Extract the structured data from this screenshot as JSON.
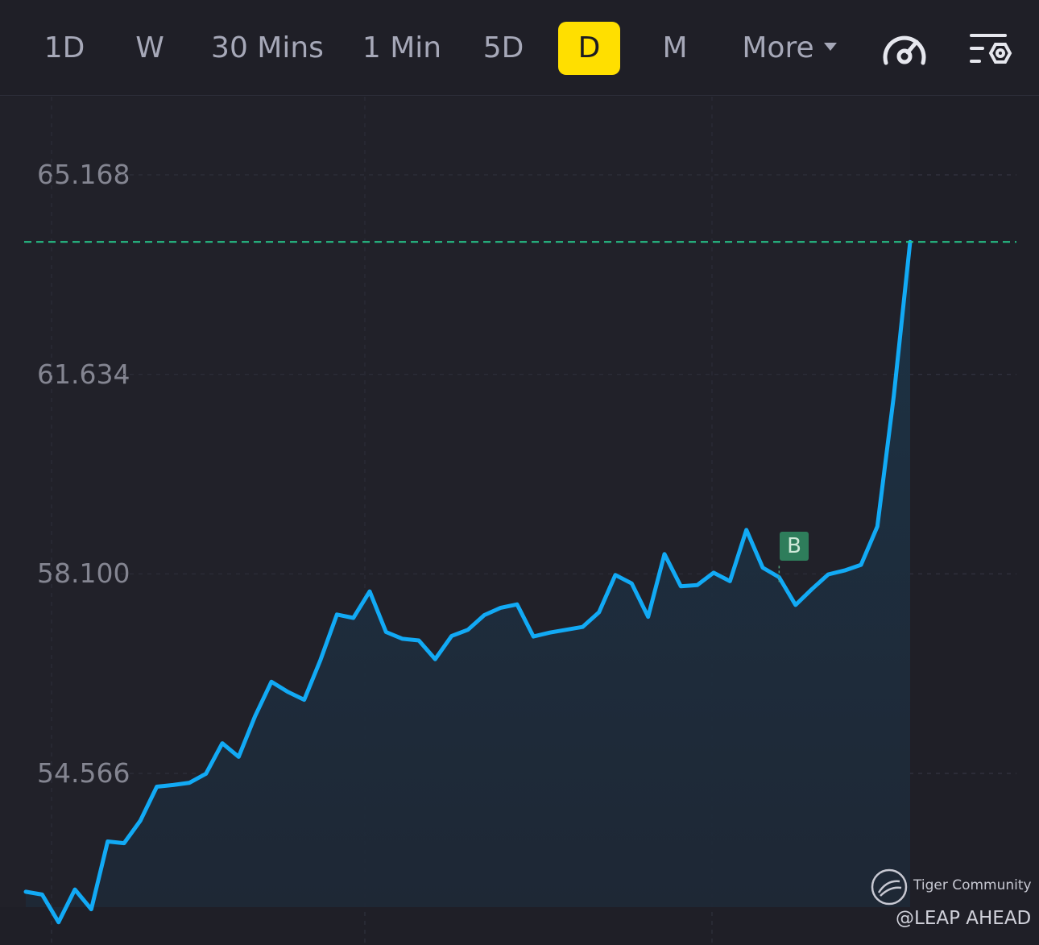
{
  "toolbar": {
    "tabs": [
      {
        "label": "1D",
        "active": false
      },
      {
        "label": "W",
        "active": false
      },
      {
        "label": "30 Mins",
        "active": false
      },
      {
        "label": "1 Min",
        "active": false
      },
      {
        "label": "5D",
        "active": false
      },
      {
        "label": "D",
        "active": true
      },
      {
        "label": "M",
        "active": false
      },
      {
        "label": "More",
        "active": false
      }
    ],
    "icons": [
      "speedometer-icon",
      "chart-settings-icon"
    ]
  },
  "chart_data": {
    "type": "area",
    "title": "",
    "xlabel": "",
    "ylabel": "",
    "y_ticks": [
      "65.168",
      "61.634",
      "58.100",
      "54.566"
    ],
    "ylim": [
      51.6,
      66.5
    ],
    "grid": true,
    "last_price_line": 63.98,
    "trade_marker": {
      "label": "B",
      "index": 46,
      "value": 58.1
    },
    "series": [
      {
        "values": [
          52.47,
          52.42,
          51.93,
          52.51,
          52.16,
          53.36,
          53.33,
          53.73,
          54.33,
          54.36,
          54.4,
          54.56,
          55.1,
          54.86,
          55.58,
          56.19,
          56.01,
          55.87,
          56.58,
          57.38,
          57.32,
          57.79,
          57.07,
          56.95,
          56.92,
          56.59,
          57.0,
          57.11,
          57.37,
          57.5,
          57.56,
          56.99,
          57.06,
          57.11,
          57.16,
          57.42,
          58.08,
          57.93,
          57.34,
          58.45,
          57.88,
          57.9,
          58.12,
          57.97,
          58.88,
          58.21,
          58.04,
          57.55,
          57.83,
          58.09,
          58.16,
          58.26,
          58.94,
          61.25,
          63.98
        ],
        "color": "#12aaf5"
      }
    ],
    "colors": {
      "line": "#12aaf5",
      "price_line": "#26c98c",
      "marker": "#2e7d5b"
    }
  },
  "watermark": {
    "brand": "Tiger Community",
    "handle": "@LEAP AHEAD"
  }
}
